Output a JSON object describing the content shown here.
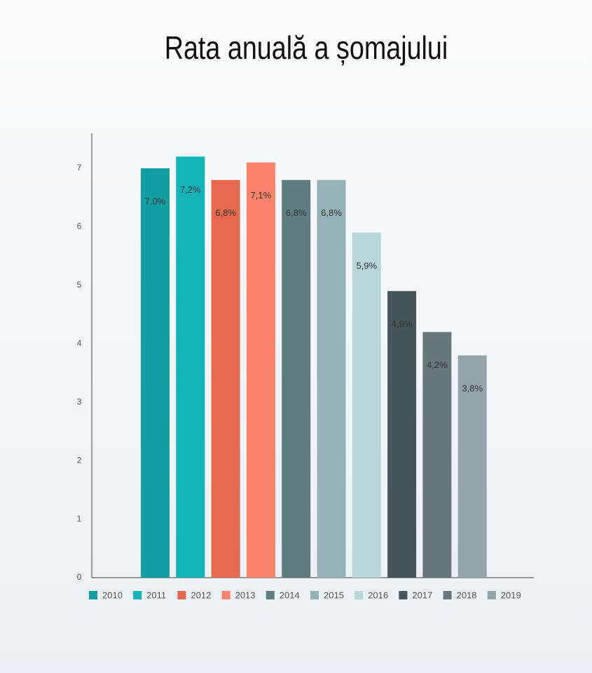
{
  "chart_data": {
    "type": "bar",
    "title": "Rata anuală a șomajului",
    "categories": [
      "2010",
      "2011",
      "2012",
      "2013",
      "2014",
      "2015",
      "2016",
      "2017",
      "2018",
      "2019"
    ],
    "values": [
      7.0,
      7.2,
      6.8,
      7.1,
      6.8,
      6.8,
      5.9,
      4.9,
      4.2,
      3.8
    ],
    "value_labels": [
      "7,0%",
      "7,2%",
      "6,8%",
      "7,1%",
      "6,8%",
      "6,8%",
      "5,9%",
      "4,9%",
      "4,2%",
      "3,8%"
    ],
    "colors": [
      "#139ea3",
      "#14b3b9",
      "#e5694c",
      "#f8836a",
      "#5f7d81",
      "#95b2b7",
      "#b9d6db",
      "#465559",
      "#67767a",
      "#95a4a8"
    ],
    "ylim": [
      0,
      7.6
    ],
    "yticks": [
      0,
      1,
      2,
      3,
      4,
      5,
      6,
      7
    ],
    "grid": false,
    "legend": "bottom"
  }
}
